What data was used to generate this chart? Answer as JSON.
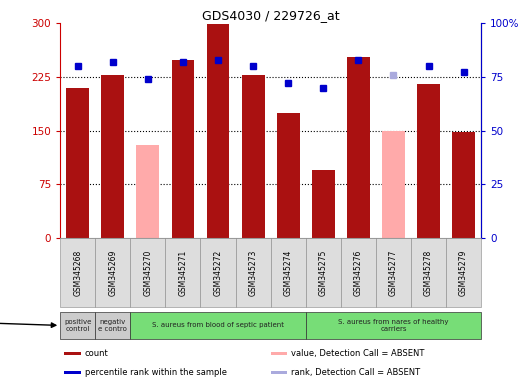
{
  "title": "GDS4030 / 229726_at",
  "samples": [
    "GSM345268",
    "GSM345269",
    "GSM345270",
    "GSM345271",
    "GSM345272",
    "GSM345273",
    "GSM345274",
    "GSM345275",
    "GSM345276",
    "GSM345277",
    "GSM345278",
    "GSM345279"
  ],
  "count_values": [
    210,
    228,
    130,
    248,
    298,
    228,
    175,
    95,
    252,
    150,
    215,
    148
  ],
  "count_absent": [
    false,
    false,
    true,
    false,
    false,
    false,
    false,
    false,
    false,
    true,
    false,
    false
  ],
  "rank_values": [
    80,
    82,
    74,
    82,
    83,
    80,
    72,
    70,
    83,
    76,
    80,
    77
  ],
  "rank_absent": [
    false,
    false,
    false,
    false,
    false,
    false,
    false,
    false,
    false,
    true,
    false,
    false
  ],
  "left_ylim": [
    0,
    300
  ],
  "right_ylim": [
    0,
    100
  ],
  "left_yticks": [
    0,
    75,
    150,
    225,
    300
  ],
  "left_yticklabels": [
    "0",
    "75",
    "150",
    "225",
    "300"
  ],
  "right_yticks": [
    0,
    25,
    50,
    75,
    100
  ],
  "right_yticklabels": [
    "0",
    "25",
    "50",
    "75",
    "100%"
  ],
  "groups": [
    {
      "label": "positive\ncontrol",
      "start": 0,
      "end": 1,
      "color": "#cccccc"
    },
    {
      "label": "negativ\ne contro",
      "start": 1,
      "end": 2,
      "color": "#cccccc"
    },
    {
      "label": "S. aureus from blood of septic patient",
      "start": 2,
      "end": 7,
      "color": "#77dd77"
    },
    {
      "label": "S. aureus from nares of healthy\ncarriers",
      "start": 7,
      "end": 12,
      "color": "#77dd77"
    }
  ],
  "bar_color_present": "#aa1111",
  "bar_color_absent": "#ffaaaa",
  "rank_color_present": "#0000cc",
  "rank_color_absent": "#aaaadd",
  "grid_dotted_values": [
    75,
    150,
    225
  ]
}
